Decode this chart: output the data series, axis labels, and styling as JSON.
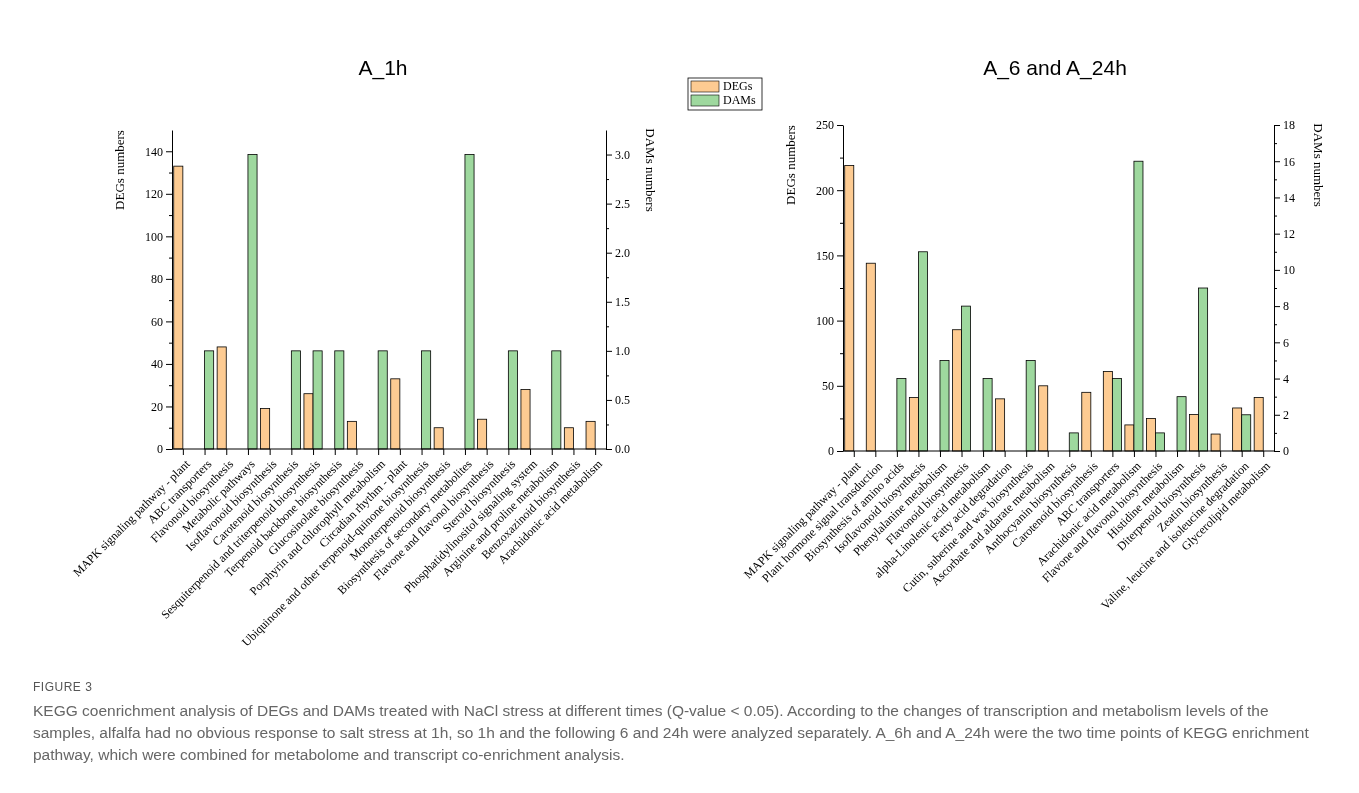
{
  "chart_data": [
    {
      "type": "bar",
      "title": "A_1h",
      "ylabel": "DEGs numbers",
      "y2label": "DAMs numbers",
      "legend": "top right",
      "categories": [
        "MAPK signaling pathway - plant",
        "ABC transporters",
        "Flavonoid biosynthesis",
        "Metabolic pathways",
        "Isoflavonoid biosynthesis",
        "Carotenoid biosynthesis",
        "Sesquiterpenoid and triterpenoid biosynthesis",
        "Terpenoid backbone biosynthesis",
        "Glucosinolate biosynthesis",
        "Porphyrin and chlorophyll metabolism",
        "Circadian rhythm - plant",
        "Ubiquinone and other terpenoid-quinone biosynthesis",
        "Monoterpenoid biosynthesis",
        "Biosynthesis of secondary metabolites",
        "Flavone and flavonol biosynthesis",
        "Steroid biosynthesis",
        "Phosphatidylinositol signaling system",
        "Arginine and proline metabolism",
        "Benzoxazinoid biosynthesis",
        "Arachidonic acid metabolism"
      ],
      "series": [
        {
          "name": "DEGs",
          "color": "#fdcb92",
          "values": [
            133,
            null,
            48,
            null,
            19,
            null,
            26,
            null,
            13,
            null,
            33,
            null,
            10,
            null,
            14,
            null,
            28,
            null,
            10,
            13
          ]
        },
        {
          "name": "DAMs",
          "color": "#9ed89e",
          "axis": "y2",
          "values": [
            null,
            1,
            null,
            3,
            null,
            1,
            1,
            1,
            null,
            1,
            null,
            1,
            null,
            3,
            null,
            1,
            null,
            1,
            null,
            null
          ]
        }
      ],
      "ylim": [
        0,
        150
      ],
      "yticks": [
        0,
        {
          "value": 10,
          "label": null
        },
        20,
        {
          "value": 30,
          "label": null
        },
        40,
        {
          "value": 50,
          "label": null
        },
        60,
        {
          "value": 70,
          "label": null
        },
        80,
        {
          "value": 90,
          "label": null
        },
        100,
        {
          "value": 110,
          "label": null
        },
        120,
        {
          "value": 130,
          "label": null
        },
        140
      ],
      "y2lim": [
        0,
        3.25
      ],
      "y2ticks": [
        {
          "value": 0,
          "label": "0.0"
        },
        {
          "value": 0.25,
          "label": null
        },
        0.5,
        {
          "value": 0.75,
          "label": null
        },
        {
          "value": 1,
          "label": "1.0"
        },
        {
          "value": 1.25,
          "label": null
        },
        1.5,
        {
          "value": 1.75,
          "label": null
        },
        {
          "value": 2,
          "label": "2.0"
        },
        {
          "value": 2.25,
          "label": null
        },
        2.5,
        {
          "value": 2.75,
          "label": null
        },
        {
          "value": 3,
          "label": "3.0"
        }
      ],
      "annotations": [
        "FIGURE 3",
        "KEGG coenrichment analysis of DEGs and DAMs treated with NaCl stress at different times (Q-value < 0.05). According to the changes of transcription and metabolism levels of the samples, alfalfa had no obvious response to salt stress at 1h, so 1h and the following 6 and 24h were analyzed separately. A_6h and A_24h were the two time points of KEGG enrichment pathway, which were combined for metabolome and transcript co-enrichment analysis."
      ]
    },
    {
      "type": "bar",
      "title": "A_6 and A_24h",
      "ylabel": "DEGs numbers",
      "y2label": "DAMs numbers",
      "categories": [
        "MAPK signaling pathway - plant",
        "Plant hormone signal transduction",
        "Biosynthesis of amino acids",
        "Isoflavonoid biosynthesis",
        "Phenylalanine metabolism",
        "Flavonoid biosynthesis",
        "alpha-Linolenic acid metabolism",
        "Fatty acid degradation",
        "Cutin, suberine and wax biosynthesis",
        "Ascorbate and aldarate metabolism",
        "Anthocyanin biosynthesis",
        "Carotenoid biosynthesis",
        "ABC transporters",
        "Arachidonic acid metabolism",
        "Flavone and flavonol biosynthesis",
        "Histidine metabolism",
        "Diterpenoid biosynthesis",
        "Zeatin biosynthesis",
        "Valine, leucine and isoleucine degradation",
        "Glycerolipid metabolism"
      ],
      "series": [
        {
          "color": "#fdcb92",
          "values": [
            219,
            144,
            null,
            41,
            null,
            93,
            null,
            40,
            null,
            50,
            null,
            45,
            61,
            20,
            25,
            null,
            28,
            13,
            33,
            41
          ]
        },
        {
          "color": "#9ed89e",
          "axis": "y2",
          "values": [
            null,
            null,
            4,
            11,
            5,
            8,
            4,
            null,
            5,
            null,
            1,
            null,
            4,
            16,
            1,
            3,
            9,
            null,
            2,
            null
          ]
        }
      ],
      "ylim": [
        0,
        250
      ],
      "yticks": [
        0,
        {
          "value": 25,
          "label": null
        },
        50,
        {
          "value": 75,
          "label": null
        },
        100,
        {
          "value": 125,
          "label": null
        },
        150,
        {
          "value": 175,
          "label": null
        },
        200,
        {
          "value": 225,
          "label": null
        },
        250
      ],
      "y2lim": [
        0,
        18
      ],
      "y2ticks": [
        0,
        {
          "value": 1,
          "label": null
        },
        2,
        {
          "value": 3,
          "label": null
        },
        4,
        {
          "value": 5,
          "label": null
        },
        6,
        {
          "value": 7,
          "label": null
        },
        8,
        {
          "value": 9,
          "label": null
        },
        10,
        {
          "value": 11,
          "label": null
        },
        12,
        {
          "value": 13,
          "label": null
        },
        14,
        {
          "value": 15,
          "label": null
        },
        16,
        {
          "value": 17,
          "label": null
        },
        18
      ]
    }
  ]
}
